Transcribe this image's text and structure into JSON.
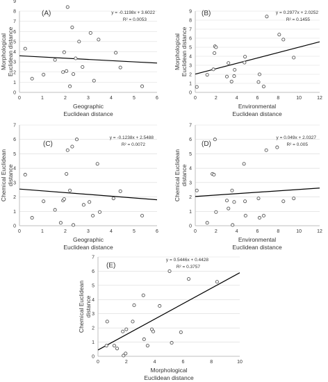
{
  "colors": {
    "axis": "#bfbfbf",
    "grid": "#d9d9d9",
    "point_fill": "#ffffff",
    "point_stroke": "#555555",
    "trend": "#000000",
    "text": "#333333"
  },
  "chart_data": [
    {
      "type": "scatter",
      "panel_label": "(A)",
      "xlabel": [
        "Geographic",
        "Euclidean distance"
      ],
      "ylabel": [
        "Morphological",
        "Euclidean distance"
      ],
      "xlim": [
        0,
        6
      ],
      "ylim": [
        0,
        8
      ],
      "xticks": [
        "0",
        "1",
        "2",
        "3",
        "4",
        "5",
        "6"
      ],
      "yticks": [
        "0",
        "1",
        "2",
        "3",
        "4",
        "5",
        "6",
        "7",
        "8",
        "9"
      ],
      "equation": "y = -0.1198x + 3.6022",
      "r2": "R² = 0.0053",
      "trendline": {
        "slope": -0.1198,
        "intercept": 3.6022
      },
      "points": [
        [
          0.25,
          4.3
        ],
        [
          0.55,
          1.35
        ],
        [
          1.05,
          1.75
        ],
        [
          1.55,
          3.2
        ],
        [
          1.9,
          2.0
        ],
        [
          1.95,
          3.95
        ],
        [
          2.05,
          2.1
        ],
        [
          2.1,
          8.4
        ],
        [
          2.2,
          0.6
        ],
        [
          2.3,
          6.4
        ],
        [
          2.35,
          1.8
        ],
        [
          2.45,
          3.35
        ],
        [
          2.6,
          5.0
        ],
        [
          2.75,
          2.5
        ],
        [
          3.1,
          5.85
        ],
        [
          3.25,
          1.15
        ],
        [
          3.45,
          5.2
        ],
        [
          4.2,
          3.9
        ],
        [
          4.4,
          2.45
        ],
        [
          5.35,
          0.6
        ]
      ]
    },
    {
      "type": "scatter",
      "panel_label": "(B)",
      "xlabel": [
        "Environmental",
        "Euclidean distance"
      ],
      "ylabel": [
        "Morphological",
        "Euclidean distance"
      ],
      "xlim": [
        0,
        12
      ],
      "ylim": [
        0,
        9
      ],
      "xticks": [
        "0",
        "2",
        "4",
        "6",
        "8",
        "10",
        "12"
      ],
      "yticks": [
        "0",
        "1",
        "2",
        "3",
        "4",
        "5",
        "6",
        "7",
        "8",
        "9"
      ],
      "equation": "y = 0.2977x + 2.0252",
      "r2": "R² = 0.1455",
      "trendline": {
        "slope": 0.2977,
        "intercept": 2.0252
      },
      "points": [
        [
          0.15,
          0.6
        ],
        [
          1.15,
          1.95
        ],
        [
          1.75,
          2.55
        ],
        [
          1.85,
          4.35
        ],
        [
          1.9,
          5.1
        ],
        [
          2.0,
          5.0
        ],
        [
          3.05,
          1.75
        ],
        [
          3.2,
          3.25
        ],
        [
          3.5,
          1.2
        ],
        [
          3.75,
          1.8
        ],
        [
          3.8,
          2.5
        ],
        [
          4.75,
          3.3
        ],
        [
          4.8,
          3.95
        ],
        [
          6.1,
          1.15
        ],
        [
          6.2,
          2.0
        ],
        [
          6.6,
          0.65
        ],
        [
          6.9,
          8.4
        ],
        [
          8.1,
          6.4
        ],
        [
          8.5,
          5.85
        ],
        [
          9.5,
          3.85
        ]
      ]
    },
    {
      "type": "scatter",
      "panel_label": "(C)",
      "xlabel": [
        "Geographic",
        "Euclidean distance"
      ],
      "ylabel": [
        "Chemical Euclidean",
        "distance"
      ],
      "xlim": [
        0,
        6
      ],
      "ylim": [
        0,
        7
      ],
      "xticks": [
        "0",
        "1",
        "2",
        "3",
        "4",
        "5",
        "6"
      ],
      "yticks": [
        "0",
        "1",
        "2",
        "3",
        "4",
        "5",
        "6",
        "7"
      ],
      "equation": "y = -0.1238x + 2.5488",
      "r2": "R² = 0.0072",
      "trendline": {
        "slope": -0.1238,
        "intercept": 2.5488
      },
      "points": [
        [
          0.25,
          3.55
        ],
        [
          0.55,
          0.55
        ],
        [
          1.05,
          1.7
        ],
        [
          1.55,
          1.1
        ],
        [
          1.8,
          0.2
        ],
        [
          1.9,
          1.75
        ],
        [
          1.95,
          1.85
        ],
        [
          2.05,
          3.6
        ],
        [
          2.1,
          5.25
        ],
        [
          2.2,
          2.45
        ],
        [
          2.3,
          5.5
        ],
        [
          2.35,
          0.05
        ],
        [
          2.5,
          6.0
        ],
        [
          2.8,
          1.45
        ],
        [
          3.05,
          1.65
        ],
        [
          3.2,
          0.7
        ],
        [
          3.4,
          4.3
        ],
        [
          3.5,
          0.95
        ],
        [
          4.1,
          1.9
        ],
        [
          4.4,
          2.4
        ],
        [
          5.35,
          0.7
        ]
      ]
    },
    {
      "type": "scatter",
      "panel_label": "(D)",
      "xlabel": [
        "Environmental",
        "Euclidean distance"
      ],
      "ylabel": [
        "Chemical Euclidean",
        "distance"
      ],
      "xlim": [
        0,
        12
      ],
      "ylim": [
        0,
        7
      ],
      "xticks": [
        "0",
        "2",
        "4",
        "6",
        "8",
        "10",
        "12"
      ],
      "yticks": [
        "0",
        "1",
        "2",
        "3",
        "4",
        "5",
        "6",
        "7"
      ],
      "equation": "y = 0.049x + 2.0327",
      "r2": "R² = 0.005",
      "trendline": {
        "slope": 0.049,
        "intercept": 2.0327
      },
      "points": [
        [
          0.15,
          2.45
        ],
        [
          1.15,
          0.2
        ],
        [
          1.65,
          3.6
        ],
        [
          1.8,
          3.55
        ],
        [
          1.9,
          6.0
        ],
        [
          2.0,
          0.95
        ],
        [
          3.05,
          1.75
        ],
        [
          3.2,
          1.2
        ],
        [
          3.55,
          2.45
        ],
        [
          3.6,
          0.05
        ],
        [
          3.75,
          1.65
        ],
        [
          4.7,
          4.3
        ],
        [
          4.8,
          1.7
        ],
        [
          4.85,
          0.7
        ],
        [
          6.1,
          1.9
        ],
        [
          6.2,
          0.55
        ],
        [
          6.6,
          0.7
        ],
        [
          6.85,
          5.25
        ],
        [
          7.9,
          5.45
        ],
        [
          8.5,
          1.7
        ],
        [
          9.5,
          1.9
        ]
      ]
    },
    {
      "type": "scatter",
      "panel_label": "(E)",
      "xlabel": [
        "Morphological",
        "Euclidean distance"
      ],
      "ylabel": [
        "Chemical Euclidean",
        "distance"
      ],
      "xlim": [
        0,
        10
      ],
      "ylim": [
        0,
        7
      ],
      "xticks": [
        "0",
        "2",
        "4",
        "6",
        "8",
        "10"
      ],
      "yticks": [
        "0",
        "1",
        "2",
        "3",
        "4",
        "5",
        "6",
        "7"
      ],
      "equation": "y = 0.5446x + 0.4428",
      "r2": "R² = 0.3757",
      "trendline": {
        "slope": 0.5446,
        "intercept": 0.4428
      },
      "points": [
        [
          0.6,
          0.75
        ],
        [
          0.65,
          2.45
        ],
        [
          1.15,
          0.75
        ],
        [
          1.35,
          0.55
        ],
        [
          1.75,
          1.75
        ],
        [
          1.8,
          0.05
        ],
        [
          1.95,
          0.2
        ],
        [
          2.0,
          1.9
        ],
        [
          2.45,
          2.45
        ],
        [
          2.55,
          3.6
        ],
        [
          3.2,
          4.3
        ],
        [
          3.25,
          1.2
        ],
        [
          3.5,
          0.75
        ],
        [
          3.8,
          1.9
        ],
        [
          3.9,
          1.75
        ],
        [
          4.35,
          3.55
        ],
        [
          5.05,
          6.0
        ],
        [
          5.2,
          0.95
        ],
        [
          5.85,
          1.7
        ],
        [
          6.4,
          5.45
        ],
        [
          8.4,
          5.25
        ]
      ]
    }
  ]
}
